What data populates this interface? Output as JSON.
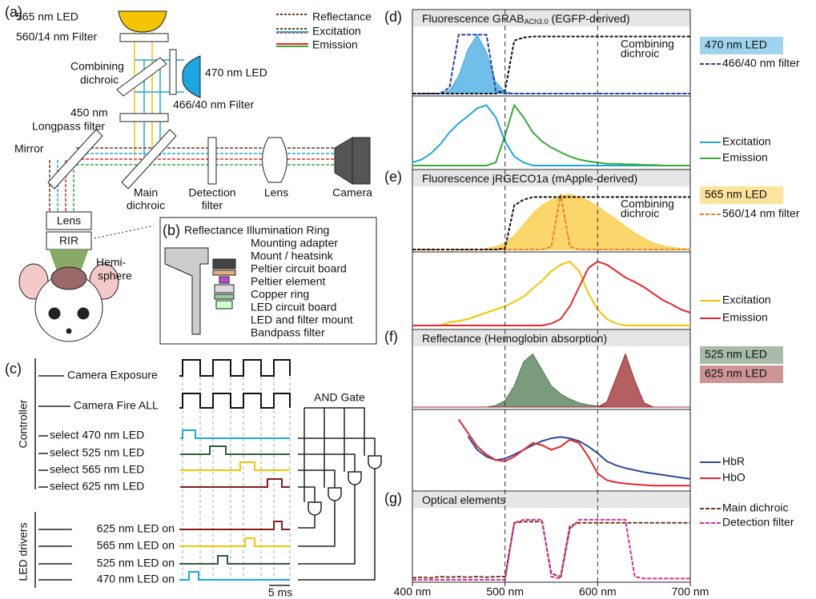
{
  "a": {
    "letter": "(a)",
    "led565": "565 nm LED",
    "filter560": "560/14 nm Filter",
    "combining": [
      "Combining",
      "dichroic"
    ],
    "led470": "470 nm LED",
    "filter466": "466/40 nm Filter",
    "longpass": [
      "450 nm",
      "Longpass filter"
    ],
    "mirror": "Mirror",
    "main": [
      "Main",
      "dichroic"
    ],
    "detection": [
      "Detection",
      "filter"
    ],
    "lens": "Lens",
    "camera": "Camera",
    "lens2": "Lens",
    "rir": "RIR",
    "hemisphere": [
      "Hemi-",
      "sphere"
    ],
    "legend": [
      "Reflectance",
      "Excitation",
      "Emission"
    ]
  },
  "b": {
    "letter": "(b)",
    "title": "Reflectance Illumination Ring",
    "parts": [
      "Mounting adapter",
      "Mount / heatsink",
      "Peltier circuit board",
      "Peltier element",
      "Copper ring",
      "LED circuit board",
      "LED and filter mount",
      "Bandpass filter"
    ]
  },
  "c": {
    "letter": "(c)",
    "camera_exposure": "Camera Exposure",
    "camera_fire": "Camera Fire ALL",
    "and_gate": "AND Gate",
    "controller": "Controller",
    "selects": [
      "select 470 nm LED",
      "select 525 nm LED",
      "select 565 nm LED",
      "select 625 nm LED"
    ],
    "drivers_label": "LED drivers",
    "drivers": [
      "625 nm LED on",
      "565 nm LED on",
      "525 nm LED on",
      "470 nm LED on"
    ],
    "scale": "5 ms"
  },
  "spectra": {
    "wavelengths": [
      400,
      410,
      420,
      430,
      440,
      450,
      460,
      470,
      480,
      490,
      500,
      510,
      520,
      530,
      540,
      550,
      560,
      570,
      580,
      590,
      600,
      610,
      620,
      630,
      640,
      650,
      660,
      670,
      680,
      690,
      700
    ],
    "xlim": [
      400,
      700
    ],
    "ylim": [
      0,
      1.1
    ],
    "xticks": [
      {
        "value": 400,
        "label": "400 nm"
      },
      {
        "value": 500,
        "label": "500 nm"
      },
      {
        "value": 600,
        "label": "600 nm"
      },
      {
        "value": 700,
        "label": "700 nm"
      }
    ],
    "guide_lines": [
      500,
      600
    ],
    "panels": [
      {
        "letter": "(d)",
        "title": "Fluorescence GRAB",
        "title_subscript": "ACh3.0",
        "title_suffix": " (EGFP-derived)",
        "curves": [
          {
            "name": "470 nm LED",
            "color": "#3fa9e0",
            "fill": true,
            "values": [
              0,
              0,
              0,
              0,
              0.05,
              0.3,
              0.75,
              1,
              0.7,
              0.2,
              0.03,
              0,
              0,
              0,
              0,
              0,
              0,
              0,
              0,
              0,
              0,
              0,
              0,
              0,
              0,
              0,
              0,
              0,
              0,
              0,
              0
            ]
          },
          {
            "name": "466/40 nm filter",
            "color": "#2a3fa8",
            "dashed": true,
            "values": [
              0,
              0,
              0,
              0,
              0.1,
              1,
              1,
              1,
              1,
              0.05,
              0,
              0,
              0,
              0,
              0,
              0,
              0,
              0,
              0,
              0,
              0,
              0,
              0,
              0,
              0,
              0,
              0,
              0,
              0,
              0,
              0
            ]
          }
        ],
        "dichroic": {
          "label": [
            "Combining",
            "dichroic"
          ],
          "values": [
            0,
            0,
            0,
            0,
            0,
            0,
            0,
            0,
            0,
            0,
            0.05,
            0.9,
            0.95,
            0.97,
            0.97,
            0.97,
            0.97,
            0.97,
            0.97,
            0.97,
            0.97,
            0.97,
            0.97,
            0.97,
            0.97,
            0.97,
            0.97,
            0.97,
            0.97,
            0.97,
            0.97
          ]
        }
      },
      {
        "curves": [
          {
            "name": "Excitation",
            "color": "#1ca7e0",
            "values": [
              0.05,
              0.1,
              0.2,
              0.35,
              0.55,
              0.7,
              0.82,
              0.95,
              1,
              0.8,
              0.4,
              0.15,
              0.05,
              0,
              0,
              0,
              0,
              0,
              0,
              0,
              0,
              0,
              0,
              0,
              0,
              0,
              0,
              0,
              0,
              0,
              0
            ]
          },
          {
            "name": "Emission",
            "color": "#3aaa35",
            "values": [
              0,
              0,
              0,
              0,
              0,
              0,
              0,
              0,
              0,
              0.05,
              0.5,
              1,
              0.8,
              0.55,
              0.4,
              0.3,
              0.22,
              0.15,
              0.1,
              0.07,
              0.05,
              0.03,
              0.03,
              0.02,
              0.02,
              0.01,
              0.01,
              0,
              0,
              0,
              0
            ]
          }
        ]
      },
      {
        "letter": "(e)",
        "title": "Fluorescence jRGECO1a (mApple-derived)",
        "curves": [
          {
            "name": "565 nm LED",
            "color": "#f9c93a",
            "fill": true,
            "values": [
              0,
              0,
              0,
              0,
              0,
              0,
              0,
              0,
              0.02,
              0.05,
              0.12,
              0.25,
              0.45,
              0.65,
              0.8,
              0.9,
              0.97,
              1,
              0.95,
              0.88,
              0.78,
              0.66,
              0.55,
              0.42,
              0.3,
              0.2,
              0.12,
              0.07,
              0.04,
              0.02,
              0.01
            ]
          },
          {
            "name": "560/14 nm filter",
            "color": "#e8822a",
            "dashed": true,
            "values": [
              0,
              0,
              0,
              0,
              0,
              0,
              0,
              0,
              0,
              0,
              0,
              0,
              0,
              0,
              0,
              0.05,
              1,
              0.05,
              0,
              0,
              0,
              0,
              0,
              0,
              0,
              0,
              0,
              0,
              0,
              0,
              0
            ]
          }
        ],
        "dichroic": {
          "label": [
            "Combining",
            "dichroic"
          ],
          "values": [
            0,
            0,
            0,
            0,
            0,
            0,
            0,
            0,
            0,
            0,
            0.02,
            0.8,
            0.9,
            0.95,
            0.95,
            0.95,
            0.95,
            0.95,
            0.95,
            0.95,
            0.95,
            0.95,
            0.95,
            0.95,
            0.95,
            0.95,
            0.95,
            0.95,
            0.95,
            0.95,
            0.95
          ]
        }
      },
      {
        "curves": [
          {
            "name": "Excitation",
            "color": "#f5c400",
            "values": [
              0,
              0,
              0,
              0,
              0.05,
              0.07,
              0.1,
              0.15,
              0.2,
              0.25,
              0.3,
              0.37,
              0.45,
              0.58,
              0.7,
              0.85,
              0.95,
              1,
              0.85,
              0.5,
              0.25,
              0.1,
              0.03,
              0,
              0,
              0,
              0,
              0,
              0,
              0,
              0
            ]
          },
          {
            "name": "Emission",
            "color": "#e8262b",
            "values": [
              0,
              0,
              0,
              0,
              0,
              0,
              0,
              0,
              0,
              0,
              0,
              0,
              0,
              0,
              0,
              0.03,
              0.1,
              0.3,
              0.6,
              0.9,
              1,
              0.95,
              0.85,
              0.75,
              0.68,
              0.6,
              0.5,
              0.4,
              0.33,
              0.25,
              0.2
            ]
          }
        ]
      },
      {
        "letter": "(f)",
        "title": "Reflectance (Hemoglobin absorption)",
        "curves": [
          {
            "name": "525 nm LED",
            "color": "#4f7a52",
            "fill": true,
            "values": [
              0,
              0,
              0,
              0,
              0,
              0,
              0,
              0,
              0,
              0.03,
              0.12,
              0.4,
              0.85,
              1,
              0.7,
              0.4,
              0.25,
              0.15,
              0.08,
              0.04,
              0.02,
              0,
              0,
              0,
              0,
              0,
              0,
              0,
              0,
              0,
              0
            ]
          },
          {
            "name": "625 nm LED",
            "color": "#9c2b2b",
            "fill": true,
            "values": [
              0,
              0,
              0,
              0,
              0,
              0,
              0,
              0,
              0,
              0,
              0,
              0,
              0,
              0,
              0,
              0,
              0,
              0,
              0,
              0,
              0,
              0.1,
              0.55,
              1,
              0.5,
              0.08,
              0,
              0,
              0,
              0,
              0
            ]
          }
        ]
      },
      {
        "curves": [
          {
            "name": "HbR",
            "color": "#2b4a9c",
            "values": [
              null,
              null,
              null,
              null,
              null,
              null,
              0.75,
              0.55,
              0.45,
              0.4,
              0.42,
              0.48,
              0.55,
              0.62,
              0.68,
              0.72,
              0.74,
              0.72,
              0.68,
              0.6,
              0.5,
              0.38,
              0.32,
              0.28,
              0.25,
              0.22,
              0.2,
              0.18,
              0.16,
              0.14,
              0.12
            ]
          },
          {
            "name": "HbO",
            "color": "#e8262b",
            "values": [
              null,
              null,
              null,
              null,
              null,
              1,
              0.8,
              0.6,
              0.48,
              0.4,
              0.38,
              0.45,
              0.55,
              0.65,
              0.62,
              0.55,
              0.6,
              0.7,
              0.65,
              0.45,
              0.2,
              0.1,
              0.07,
              0.05,
              0.04,
              0.03,
              0.02,
              0.02,
              0.02,
              0.02,
              0.02
            ]
          }
        ]
      },
      {
        "letter": "(g)",
        "title": "Optical elements",
        "curves": [
          {
            "name": "Main dichroic",
            "color": "#6b3a1c",
            "dashed": true,
            "values": [
              0.03,
              0.04,
              0.03,
              0.05,
              0.04,
              0.05,
              0.04,
              0.05,
              0.04,
              0.05,
              0.05,
              0.9,
              0.92,
              0.92,
              0.92,
              0.1,
              0.05,
              0.85,
              0.9,
              0.9,
              0.9,
              0.9,
              0.9,
              0.9,
              0.9,
              0.9,
              0.9,
              0.9,
              0.9,
              0.9,
              0.9
            ]
          },
          {
            "name": "Detection filter",
            "color": "#e0299a",
            "dashed": true,
            "values": [
              0,
              0,
              0,
              0,
              0,
              0,
              0,
              0,
              0,
              0,
              0,
              0.9,
              0.95,
              0.95,
              0.95,
              0.05,
              0.02,
              0.8,
              0.95,
              0.95,
              0.95,
              0.95,
              0.95,
              0.95,
              0.05,
              0.02,
              0.02,
              0.02,
              0.02,
              0.02,
              0.02
            ]
          }
        ]
      }
    ]
  }
}
